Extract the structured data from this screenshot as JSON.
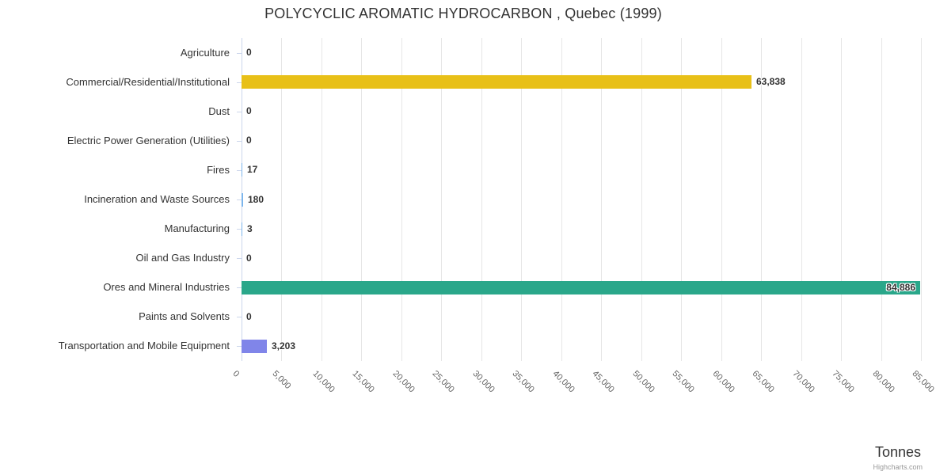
{
  "page": {
    "title": "POLYCYCLIC AROMATIC HYDROCARBON , Quebec (1999)",
    "axis_title": "Tonnes",
    "credits": "Highcharts.com"
  },
  "chart_data": {
    "type": "bar",
    "orientation": "horizontal",
    "title": "POLYCYCLIC AROMATIC HYDROCARBON , Quebec (1999)",
    "xlabel": "Tonnes",
    "ylabel": "",
    "categories": [
      "Agriculture",
      "Commercial/Residential/Institutional",
      "Dust",
      "Electric Power Generation (Utilities)",
      "Fires",
      "Incineration and Waste Sources",
      "Manufacturing",
      "Oil and Gas Industry",
      "Ores and Mineral Industries",
      "Paints and Solvents",
      "Transportation and Mobile Equipment"
    ],
    "values": [
      0,
      63838,
      0,
      0,
      17,
      180,
      3,
      0,
      84886,
      0,
      3203
    ],
    "value_labels": [
      "0",
      "63,838",
      "0",
      "0",
      "17",
      "180",
      "3",
      "0",
      "84,886",
      "0",
      "3,203"
    ],
    "bar_colors": [
      "#7cb5ec",
      "#e8c018",
      "#7cb5ec",
      "#7cb5ec",
      "#7cb5ec",
      "#7cb5ec",
      "#7cb5ec",
      "#7cb5ec",
      "#2aa78a",
      "#7cb5ec",
      "#8085e9"
    ],
    "xlim": [
      0,
      85000
    ],
    "tick_interval": 5000,
    "x_tick_labels": [
      "0",
      "5,000",
      "10,000",
      "15,000",
      "20,000",
      "25,000",
      "30,000",
      "35,000",
      "40,000",
      "45,000",
      "50,000",
      "55,000",
      "60,000",
      "65,000",
      "70,000",
      "75,000",
      "80,000",
      "85,000"
    ],
    "grid": true,
    "legend": false
  },
  "colors": {
    "grid": "#e6e6e6",
    "axis": "#ccd6eb",
    "text": "#333333",
    "tick_label": "#666666",
    "credits": "#999999"
  }
}
